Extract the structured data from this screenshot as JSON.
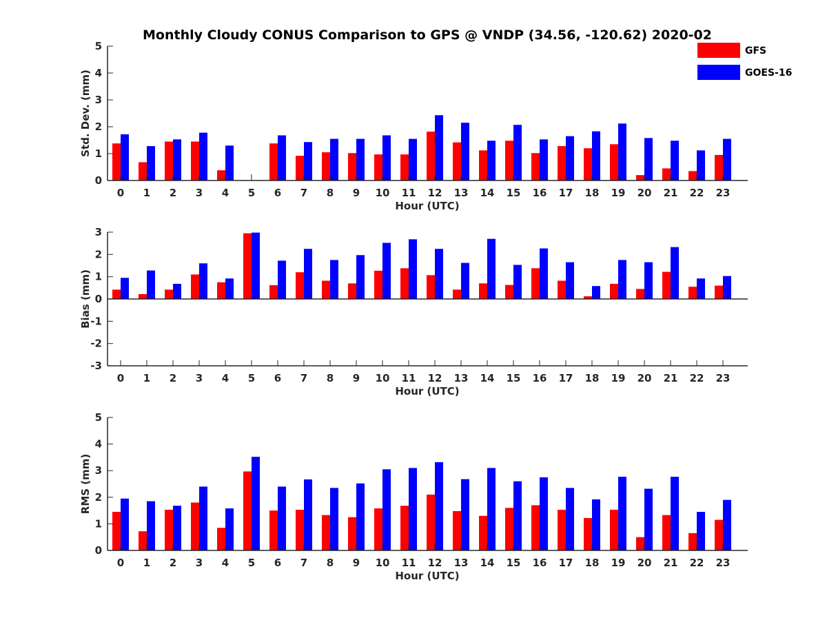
{
  "chart_data": [
    {
      "type": "bar",
      "title": "Monthly Cloudy CONUS Comparison to GPS @ VNDP (34.56, -120.62) 2020-02",
      "xlabel": "Hour (UTC)",
      "ylabel": "Std. Dev. (mm)",
      "ylim": [
        0,
        5
      ],
      "yticks": [
        "0",
        "1",
        "2",
        "3",
        "4",
        "5"
      ],
      "categories": [
        "0",
        "1",
        "2",
        "3",
        "4",
        "5",
        "6",
        "7",
        "8",
        "9",
        "10",
        "11",
        "12",
        "13",
        "14",
        "15",
        "16",
        "17",
        "18",
        "19",
        "20",
        "21",
        "22",
        "23"
      ],
      "legend": "top-right",
      "series": [
        {
          "name": "GFS",
          "color": "#ff0000",
          "values": [
            1.38,
            0.68,
            1.45,
            1.45,
            0.38,
            0,
            1.38,
            0.92,
            1.05,
            1.02,
            0.97,
            0.97,
            1.82,
            1.42,
            1.12,
            1.48,
            1.02,
            1.28,
            1.2,
            1.35,
            0.2,
            0.45,
            0.35,
            0.95
          ]
        },
        {
          "name": "GOES-16",
          "color": "#0000ff",
          "values": [
            1.72,
            1.28,
            1.53,
            1.78,
            1.3,
            0,
            1.68,
            1.43,
            1.55,
            1.55,
            1.68,
            1.55,
            2.43,
            2.15,
            1.48,
            2.07,
            1.53,
            1.65,
            1.83,
            2.12,
            1.58,
            1.48,
            1.12,
            1.55
          ]
        }
      ]
    },
    {
      "type": "bar",
      "xlabel": "Hour (UTC)",
      "ylabel": "Bias (mm)",
      "ylim": [
        -3,
        3
      ],
      "yticks": [
        "-3",
        "-2",
        "-1",
        "0",
        "1",
        "2",
        "3"
      ],
      "categories": [
        "0",
        "1",
        "2",
        "3",
        "4",
        "5",
        "6",
        "7",
        "8",
        "9",
        "10",
        "11",
        "12",
        "13",
        "14",
        "15",
        "16",
        "17",
        "18",
        "19",
        "20",
        "21",
        "22",
        "23"
      ],
      "series": [
        {
          "name": "GFS",
          "color": "#ff0000",
          "values": [
            0.42,
            0.22,
            0.42,
            1.1,
            0.75,
            2.95,
            0.62,
            1.2,
            0.82,
            0.7,
            1.27,
            1.38,
            1.07,
            0.42,
            0.7,
            0.63,
            1.38,
            0.82,
            0.12,
            0.68,
            0.45,
            1.22,
            0.55,
            0.6
          ]
        },
        {
          "name": "GOES-16",
          "color": "#0000ff",
          "values": [
            0.95,
            1.28,
            0.68,
            1.6,
            0.92,
            2.98,
            1.72,
            2.25,
            1.75,
            1.97,
            2.52,
            2.68,
            2.25,
            1.62,
            2.7,
            1.53,
            2.27,
            1.65,
            0.58,
            1.75,
            1.65,
            2.33,
            0.92,
            1.03
          ]
        }
      ]
    },
    {
      "type": "bar",
      "xlabel": "Hour (UTC)",
      "ylabel": "RMS (mm)",
      "ylim": [
        0,
        5
      ],
      "yticks": [
        "0",
        "1",
        "2",
        "3",
        "4",
        "5"
      ],
      "categories": [
        "0",
        "1",
        "2",
        "3",
        "4",
        "5",
        "6",
        "7",
        "8",
        "9",
        "10",
        "11",
        "12",
        "13",
        "14",
        "15",
        "16",
        "17",
        "18",
        "19",
        "20",
        "21",
        "22",
        "23"
      ],
      "series": [
        {
          "name": "GFS",
          "color": "#ff0000",
          "values": [
            1.45,
            0.72,
            1.53,
            1.8,
            0.85,
            2.97,
            1.5,
            1.53,
            1.33,
            1.25,
            1.58,
            1.68,
            2.1,
            1.48,
            1.3,
            1.6,
            1.7,
            1.53,
            1.22,
            1.53,
            0.5,
            1.33,
            0.65,
            1.15
          ]
        },
        {
          "name": "GOES-16",
          "color": "#0000ff",
          "values": [
            1.95,
            1.85,
            1.68,
            2.4,
            1.58,
            3.52,
            2.4,
            2.67,
            2.35,
            2.52,
            3.05,
            3.1,
            3.32,
            2.68,
            3.1,
            2.6,
            2.75,
            2.35,
            1.92,
            2.77,
            2.32,
            2.77,
            1.45,
            1.9
          ]
        }
      ]
    }
  ]
}
